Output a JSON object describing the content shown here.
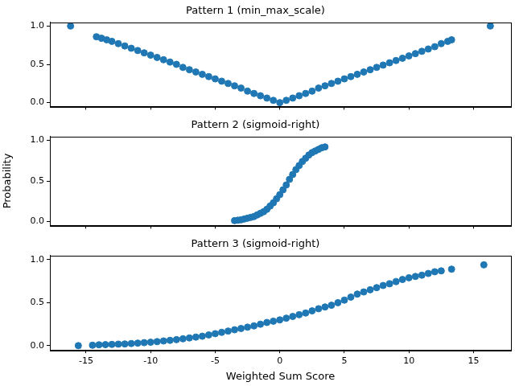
{
  "chart_data": [
    {
      "type": "scatter",
      "title": "Pattern 1 (min_max_scale)",
      "color": "#1f77b4",
      "marker": "circle",
      "grid": false,
      "tick_labels": "y",
      "x": [
        -16.2,
        -14.2,
        -13.8,
        -13.4,
        -13,
        -12.5,
        -12,
        -11.5,
        -11,
        -10.5,
        -10,
        -9.5,
        -9,
        -8.5,
        -8,
        -7.5,
        -7,
        -6.5,
        -6,
        -5.5,
        -5,
        -4.5,
        -4,
        -3.5,
        -3,
        -2.5,
        -2,
        -1.5,
        -1,
        -0.5,
        0,
        0.5,
        1,
        1.5,
        2,
        2.5,
        3,
        3.5,
        4,
        4.5,
        5,
        5.5,
        6,
        6.5,
        7,
        7.5,
        8,
        8.5,
        9,
        9.5,
        10,
        10.5,
        11,
        11.5,
        12,
        12.5,
        13,
        13.3,
        16.3
      ],
      "values": [
        1.0,
        0.86,
        0.84,
        0.82,
        0.8,
        0.77,
        0.74,
        0.71,
        0.68,
        0.65,
        0.62,
        0.59,
        0.56,
        0.53,
        0.5,
        0.46,
        0.43,
        0.4,
        0.37,
        0.34,
        0.31,
        0.28,
        0.25,
        0.22,
        0.19,
        0.15,
        0.12,
        0.09,
        0.06,
        0.03,
        0.0,
        0.03,
        0.06,
        0.09,
        0.12,
        0.15,
        0.19,
        0.22,
        0.25,
        0.28,
        0.31,
        0.34,
        0.37,
        0.4,
        0.43,
        0.46,
        0.49,
        0.52,
        0.55,
        0.58,
        0.61,
        0.64,
        0.67,
        0.7,
        0.73,
        0.77,
        0.8,
        0.82,
        1.0
      ],
      "xlim": [
        -17.8,
        17.9
      ],
      "xticks": [
        -15,
        -10,
        -5,
        0,
        5,
        10,
        15
      ],
      "ylim": [
        -0.05,
        1.05
      ],
      "yticks": [
        {
          "value": 0,
          "label": "0.0"
        },
        {
          "value": 0.5,
          "label": "0.5"
        },
        {
          "value": 1,
          "label": "1.0"
        }
      ]
    },
    {
      "type": "scatter",
      "title": "Pattern 2 (sigmoid-right)",
      "ylabel": "Probability",
      "color": "#1f77b4",
      "marker": "circle",
      "grid": false,
      "tick_labels": "y",
      "x": [
        -3.5,
        -3.25,
        -3,
        -2.75,
        -2.5,
        -2.25,
        -2,
        -1.75,
        -1.5,
        -1.25,
        -1,
        -0.75,
        -0.5,
        -0.25,
        0,
        0.25,
        0.5,
        0.75,
        1,
        1.25,
        1.5,
        1.75,
        2,
        2.25,
        2.5,
        2.75,
        3,
        3.25,
        3.5
      ],
      "values": [
        0.01,
        0.015,
        0.02,
        0.03,
        0.04,
        0.05,
        0.06,
        0.08,
        0.1,
        0.12,
        0.15,
        0.19,
        0.23,
        0.28,
        0.33,
        0.39,
        0.45,
        0.52,
        0.58,
        0.64,
        0.69,
        0.74,
        0.78,
        0.82,
        0.85,
        0.87,
        0.89,
        0.91,
        0.92
      ],
      "xlim": [
        -17.8,
        17.9
      ],
      "xticks": [
        -15,
        -10,
        -5,
        0,
        5,
        10,
        15
      ],
      "ylim": [
        -0.05,
        1.05
      ],
      "yticks": [
        {
          "value": 0,
          "label": "0.0"
        },
        {
          "value": 0.5,
          "label": "0.5"
        },
        {
          "value": 1,
          "label": "1.0"
        }
      ]
    },
    {
      "type": "scatter",
      "title": "Pattern 3 (sigmoid-right)",
      "xlabel": "Weighted Sum Score",
      "color": "#1f77b4",
      "marker": "circle",
      "grid": false,
      "x": [
        -15.6,
        -14.5,
        -14,
        -13.5,
        -13,
        -12.5,
        -12,
        -11.5,
        -11,
        -10.5,
        -10,
        -9.5,
        -9,
        -8.5,
        -8,
        -7.5,
        -7,
        -6.5,
        -6,
        -5.5,
        -5,
        -4.5,
        -4,
        -3.5,
        -3,
        -2.5,
        -2,
        -1.5,
        -1,
        -0.5,
        0,
        0.5,
        1,
        1.5,
        2,
        2.5,
        3,
        3.5,
        4,
        4.5,
        5,
        5.5,
        6,
        6.5,
        7,
        7.5,
        8,
        8.5,
        9,
        9.5,
        10,
        10.5,
        11,
        11.5,
        12,
        12.5,
        13.3,
        15.8
      ],
      "values": [
        0.0,
        0.005,
        0.01,
        0.012,
        0.015,
        0.018,
        0.02,
        0.025,
        0.03,
        0.035,
        0.04,
        0.047,
        0.055,
        0.062,
        0.07,
        0.08,
        0.09,
        0.1,
        0.11,
        0.125,
        0.14,
        0.155,
        0.17,
        0.185,
        0.2,
        0.215,
        0.23,
        0.25,
        0.27,
        0.285,
        0.3,
        0.32,
        0.34,
        0.36,
        0.38,
        0.405,
        0.43,
        0.45,
        0.47,
        0.5,
        0.53,
        0.565,
        0.6,
        0.625,
        0.65,
        0.675,
        0.7,
        0.72,
        0.745,
        0.77,
        0.79,
        0.805,
        0.82,
        0.84,
        0.86,
        0.87,
        0.89,
        0.94
      ],
      "xlim": [
        -17.8,
        17.9
      ],
      "xticks": [
        -15,
        -10,
        -5,
        0,
        5,
        10,
        15
      ],
      "ylim": [
        -0.05,
        1.05
      ],
      "yticks": [
        {
          "value": 0,
          "label": "0.0"
        },
        {
          "value": 0.5,
          "label": "0.5"
        },
        {
          "value": 1,
          "label": "1.0"
        }
      ]
    }
  ]
}
